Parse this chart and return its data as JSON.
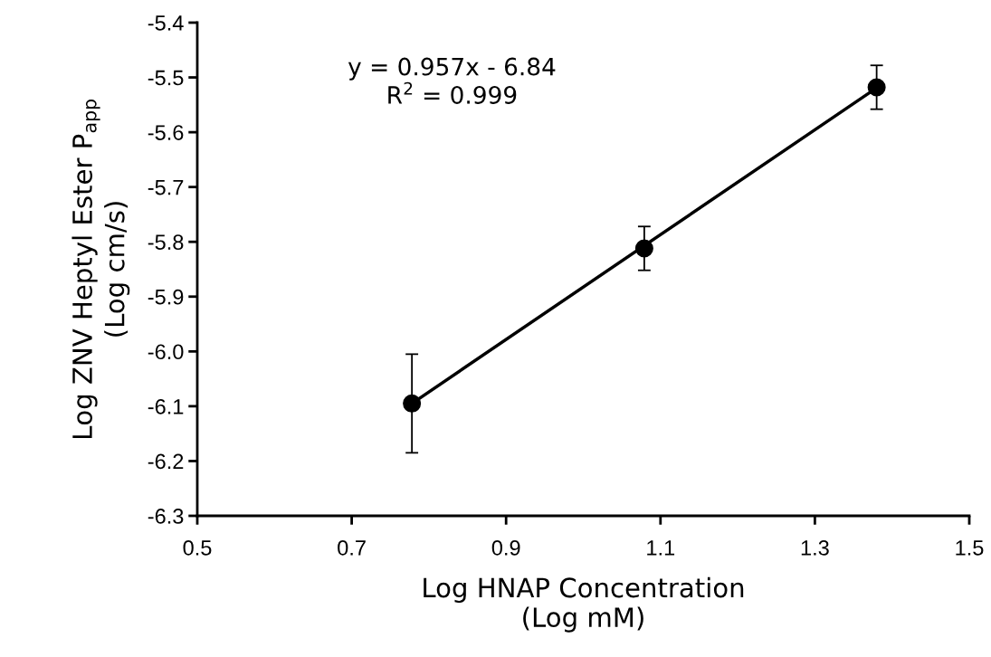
{
  "chart_data": {
    "type": "scatter",
    "xlabel": "Log HNAP Concentration\n(Log mM)",
    "ylabel": "Log ZNV Heptyl Ester P$_{app}$\n(Log cm/s)",
    "annotations": [
      "y = 0.957x - 6.84\nR$^{2}$ = 0.999"
    ],
    "series": [
      {
        "color": "#000000",
        "x": [
          0.778,
          1.079,
          1.38
        ],
        "values": [
          -6.095,
          -5.812,
          -5.518
        ],
        "errors": [
          0.09,
          0.04,
          0.04
        ],
        "marker": "circle"
      },
      {
        "type": "line",
        "color": "#000000",
        "x": [
          0.778,
          1.38
        ],
        "values": [
          -6.095,
          -5.519
        ],
        "line_style": "solid"
      }
    ],
    "xlim": [
      0.5,
      1.5
    ],
    "xticks": [
      0.5,
      0.7,
      0.9,
      1.1,
      1.3,
      1.5
    ],
    "ylim": [
      -6.3,
      -5.4
    ],
    "yticks": [
      {
        "value": -6.3,
        "label": "-6.3"
      },
      {
        "value": -6.2,
        "label": "-6.2"
      },
      {
        "value": -6.1,
        "label": "-6.1"
      },
      {
        "value": -6.0,
        "label": "-6.0"
      },
      {
        "value": -5.9,
        "label": "-5.9"
      },
      {
        "value": -5.8,
        "label": "-5.8"
      },
      {
        "value": -5.7,
        "label": "-5.7"
      },
      {
        "value": -5.6,
        "label": "-5.6"
      },
      {
        "value": -5.5,
        "label": "-5.5"
      },
      {
        "value": -5.4,
        "label": "-5.4"
      }
    ],
    "grid": false,
    "legend": false
  }
}
